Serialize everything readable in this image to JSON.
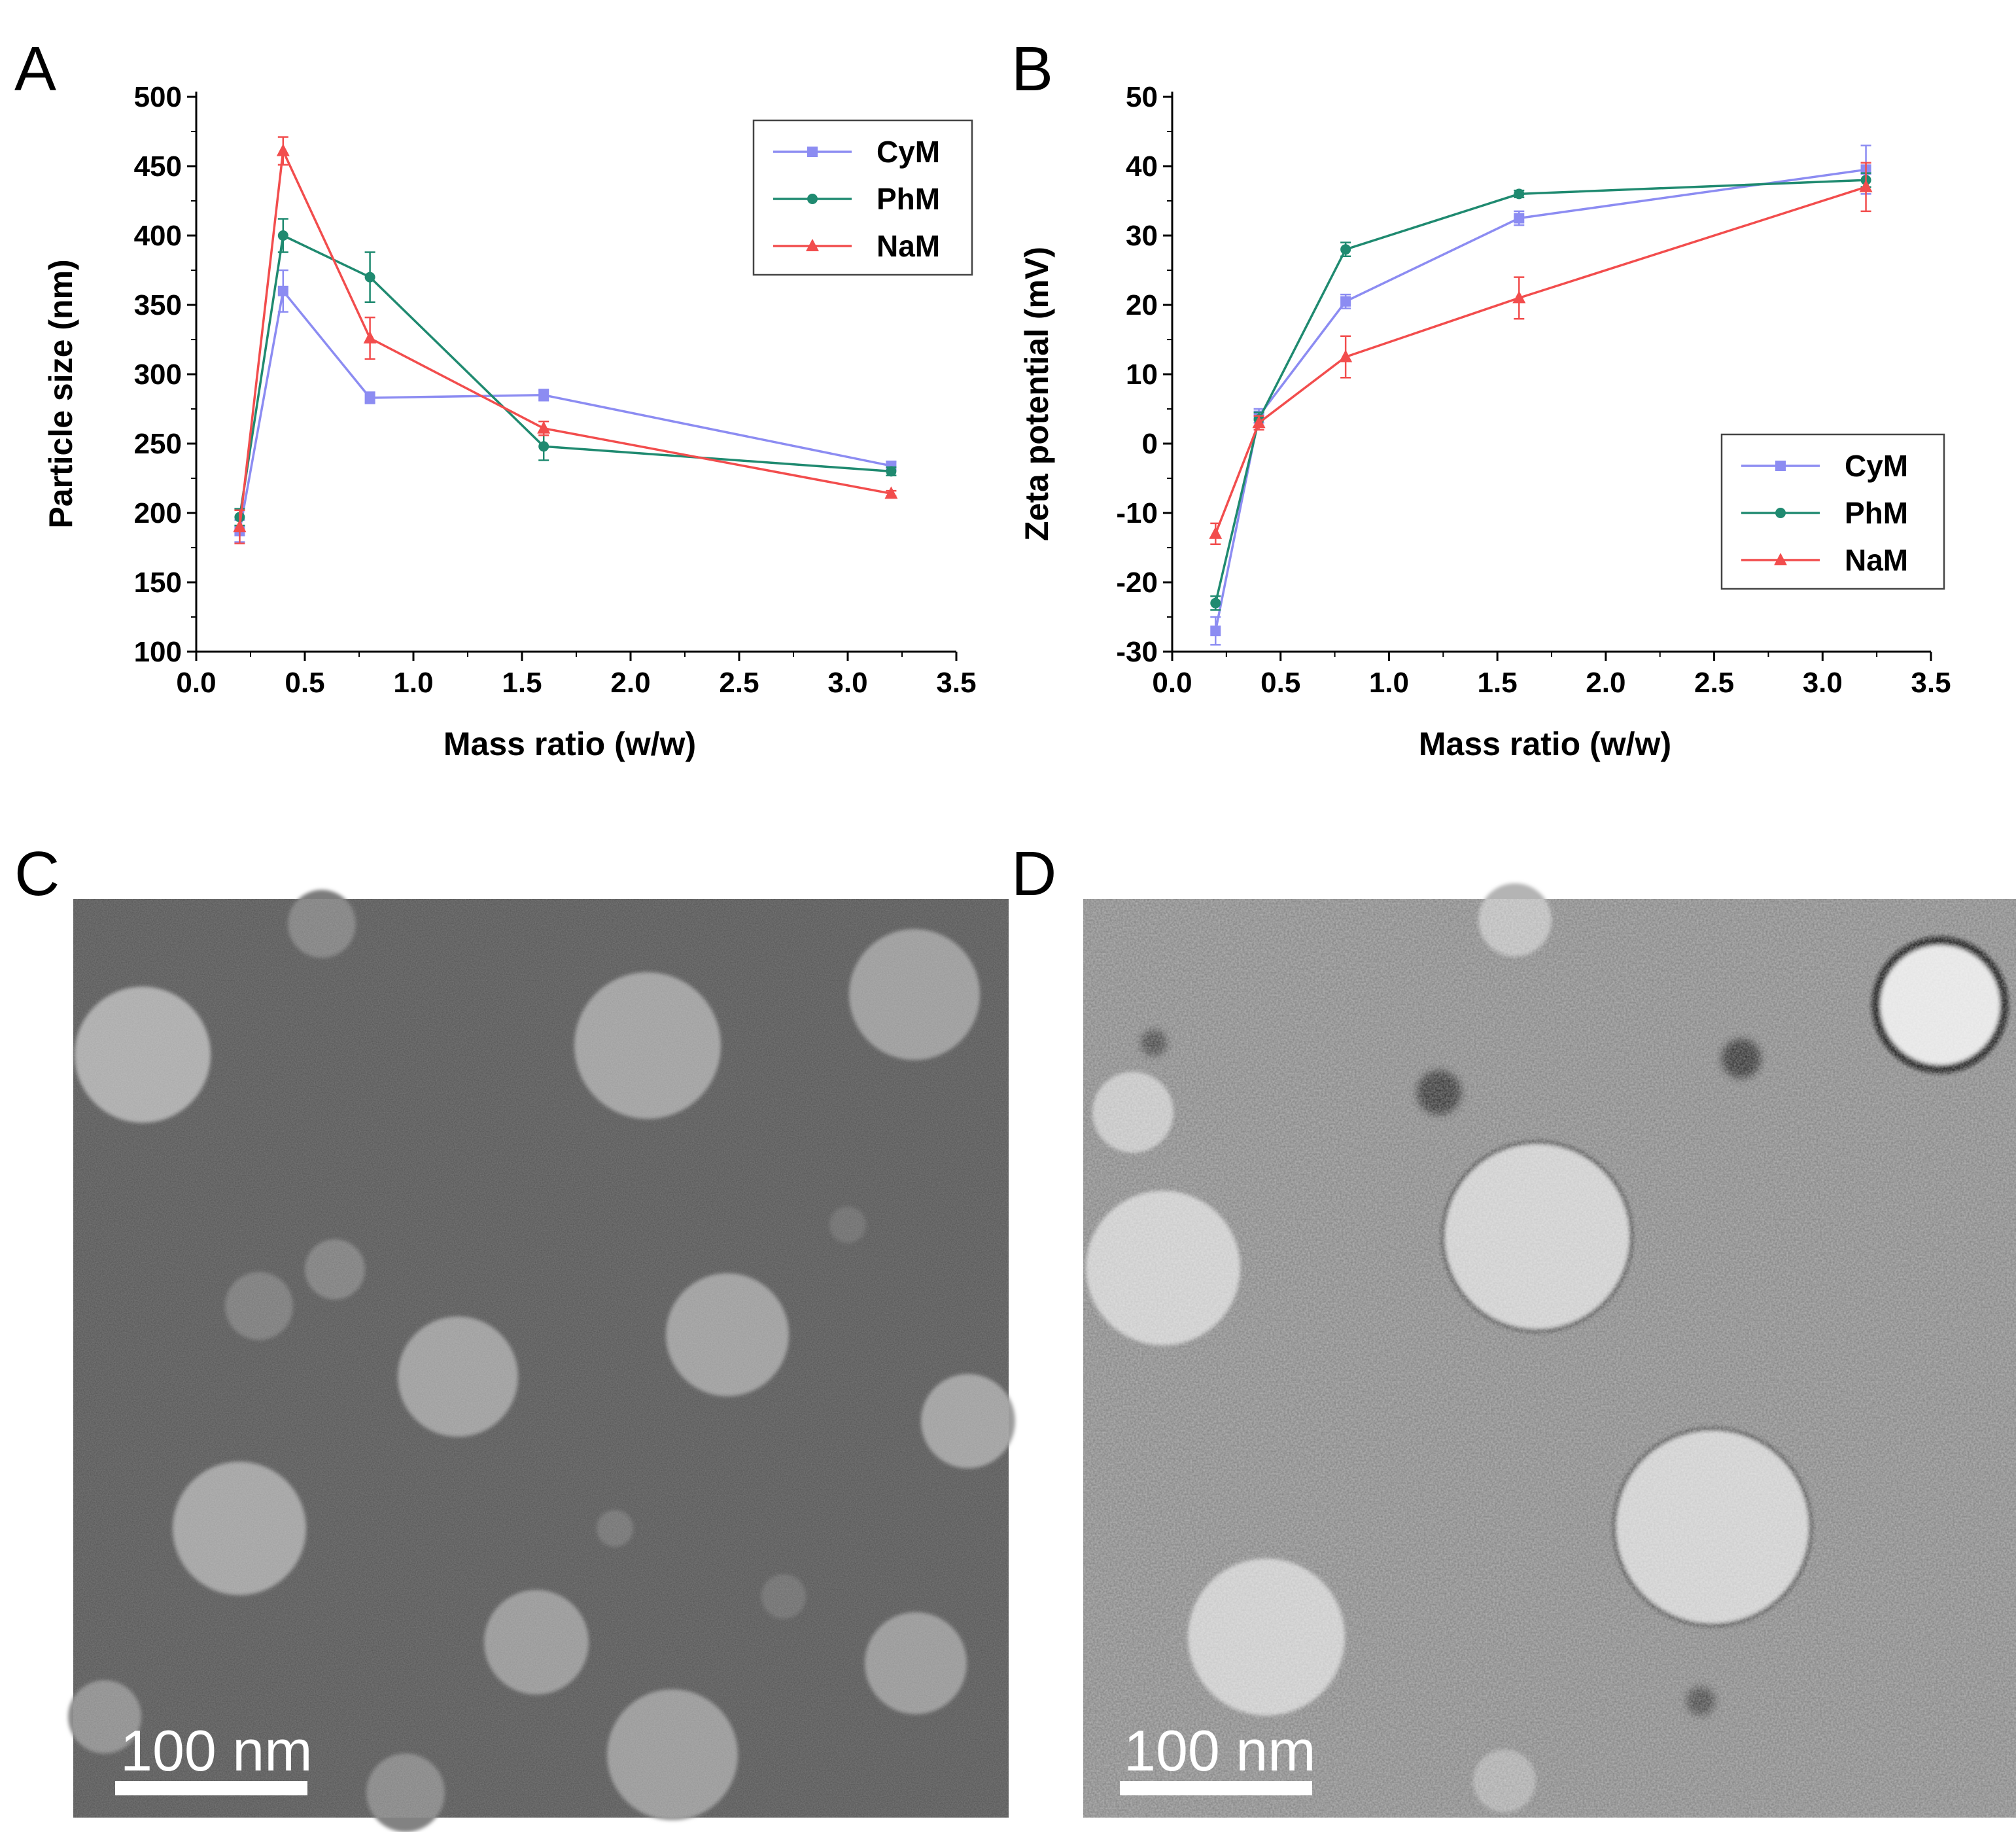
{
  "panels": {
    "A": "A",
    "B": "B",
    "C": "C",
    "D": "D"
  },
  "colors": {
    "CyM": "#8c8cf2",
    "PhM": "#1f8a70",
    "NaM": "#f24d4d"
  },
  "chart_data": [
    {
      "type": "line",
      "panel": "A",
      "xlabel": "Mass ratio (w/w)",
      "ylabel": "Particle size (nm)",
      "xlim": [
        0.0,
        3.5
      ],
      "ylim": [
        100,
        500
      ],
      "x_ticks": [
        "0.0",
        "0.5",
        "1.0",
        "1.5",
        "2.0",
        "2.5",
        "3.0",
        "3.5"
      ],
      "y_ticks": [
        "100",
        "150",
        "200",
        "250",
        "300",
        "350",
        "400",
        "450",
        "500"
      ],
      "legend_position": "top-right",
      "grid": false,
      "x": [
        0.2,
        0.4,
        0.8,
        1.6,
        3.2
      ],
      "series": [
        {
          "name": "CyM",
          "values": [
            187,
            360,
            283,
            285,
            234
          ],
          "errors": [
            8,
            15,
            4,
            4,
            3
          ],
          "marker": "square"
        },
        {
          "name": "PhM",
          "values": [
            197,
            400,
            370,
            248,
            230
          ],
          "errors": [
            6,
            12,
            18,
            10,
            3
          ],
          "marker": "circle"
        },
        {
          "name": "NaM",
          "values": [
            190,
            461,
            326,
            261,
            214
          ],
          "errors": [
            12,
            10,
            15,
            5,
            2
          ],
          "marker": "triangle"
        }
      ]
    },
    {
      "type": "line",
      "panel": "B",
      "xlabel": "Mass ratio (w/w)",
      "ylabel": "Zeta potential (mV)",
      "xlim": [
        0.0,
        3.5
      ],
      "ylim": [
        -30,
        50
      ],
      "x_ticks": [
        "0.0",
        "0.5",
        "1.0",
        "1.5",
        "2.0",
        "2.5",
        "3.0",
        "3.5"
      ],
      "y_ticks": [
        "-30",
        "-20",
        "-10",
        "0",
        "10",
        "20",
        "30",
        "40",
        "50"
      ],
      "legend_position": "bottom-right",
      "grid": false,
      "x": [
        0.2,
        0.4,
        0.8,
        1.6,
        3.2
      ],
      "series": [
        {
          "name": "CyM",
          "values": [
            -27,
            4,
            20.5,
            32.5,
            39.5
          ],
          "errors": [
            2,
            1,
            1,
            1,
            3.5
          ],
          "marker": "square"
        },
        {
          "name": "PhM",
          "values": [
            -23,
            3.5,
            28,
            36,
            38
          ],
          "errors": [
            1,
            1,
            1,
            0.5,
            1
          ],
          "marker": "circle"
        },
        {
          "name": "NaM",
          "values": [
            -13,
            3,
            12.5,
            21,
            37
          ],
          "errors": [
            1.5,
            1,
            3,
            3,
            3.5
          ],
          "marker": "triangle"
        }
      ]
    }
  ],
  "micrographs": [
    {
      "panel": "C",
      "scale_label": "100 nm"
    },
    {
      "panel": "D",
      "scale_label": "100 nm"
    }
  ]
}
